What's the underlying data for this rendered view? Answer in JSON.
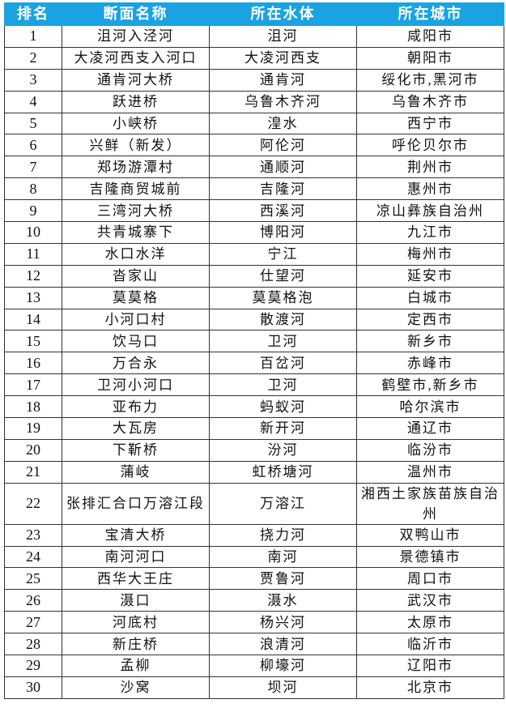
{
  "table": {
    "headers": [
      "排名",
      "断面名称",
      "所在水体",
      "所在城市"
    ],
    "rows": [
      [
        "1",
        "沮河入泾河",
        "沮河",
        "咸阳市"
      ],
      [
        "2",
        "大凌河西支入河口",
        "大凌河西支",
        "朝阳市"
      ],
      [
        "3",
        "通肯河大桥",
        "通肯河",
        "绥化市,黑河市"
      ],
      [
        "4",
        "跃进桥",
        "乌鲁木齐河",
        "乌鲁木齐市"
      ],
      [
        "5",
        "小峡桥",
        "湟水",
        "西宁市"
      ],
      [
        "6",
        "兴鲜（新发）",
        "阿伦河",
        "呼伦贝尔市"
      ],
      [
        "7",
        "郑场游潭村",
        "通顺河",
        "荆州市"
      ],
      [
        "8",
        "吉隆商贸城前",
        "吉隆河",
        "惠州市"
      ],
      [
        "9",
        "三湾河大桥",
        "西溪河",
        "凉山彝族自治州"
      ],
      [
        "10",
        "共青城寨下",
        "博阳河",
        "九江市"
      ],
      [
        "11",
        "水口水洋",
        "宁江",
        "梅州市"
      ],
      [
        "12",
        "沓家山",
        "仕望河",
        "延安市"
      ],
      [
        "13",
        "莫莫格",
        "莫莫格泡",
        "白城市"
      ],
      [
        "14",
        "小河口村",
        "散渡河",
        "定西市"
      ],
      [
        "15",
        "饮马口",
        "卫河",
        "新乡市"
      ],
      [
        "16",
        "万合永",
        "百岔河",
        "赤峰市"
      ],
      [
        "17",
        "卫河小河口",
        "卫河",
        "鹤壁市,新乡市"
      ],
      [
        "18",
        "亚布力",
        "蚂蚁河",
        "哈尔滨市"
      ],
      [
        "19",
        "大瓦房",
        "新开河",
        "通辽市"
      ],
      [
        "20",
        "下靳桥",
        "汾河",
        "临汾市"
      ],
      [
        "21",
        "蒲岐",
        "虹桥塘河",
        "温州市"
      ],
      [
        "22",
        "张排汇合口万溶江段",
        "万溶江",
        "湘西土家族苗族自治州"
      ],
      [
        "23",
        "宝清大桥",
        "挠力河",
        "双鸭山市"
      ],
      [
        "24",
        "南河河口",
        "南河",
        "景德镇市"
      ],
      [
        "25",
        "西华大王庄",
        "贾鲁河",
        "周口市"
      ],
      [
        "26",
        "滠口",
        "滠水",
        "武汉市"
      ],
      [
        "27",
        "河底村",
        "杨兴河",
        "太原市"
      ],
      [
        "28",
        "新庄桥",
        "浪清河",
        "临沂市"
      ],
      [
        "29",
        "孟柳",
        "柳壕河",
        "辽阳市"
      ],
      [
        "30",
        "沙窝",
        "坝河",
        "北京市"
      ]
    ]
  },
  "colors": {
    "header_bg": "#1aa3e0",
    "header_text": "#ffffff"
  }
}
